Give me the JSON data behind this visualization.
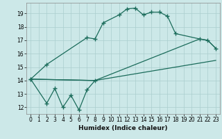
{
  "xlabel": "Humidex (Indice chaleur)",
  "bg_color": "#cce8e8",
  "grid_color": "#aacece",
  "line_color": "#1a6b5a",
  "xlim": [
    -0.5,
    23.5
  ],
  "ylim": [
    11.5,
    19.8
  ],
  "yticks": [
    12,
    13,
    14,
    15,
    16,
    17,
    18,
    19
  ],
  "xticks": [
    0,
    1,
    2,
    3,
    4,
    5,
    6,
    7,
    8,
    9,
    10,
    11,
    12,
    13,
    14,
    15,
    16,
    17,
    18,
    19,
    20,
    21,
    22,
    23
  ],
  "line1_marked": [
    [
      0,
      14.1
    ],
    [
      2,
      15.2
    ],
    [
      7,
      17.2
    ],
    [
      8,
      17.1
    ],
    [
      9,
      18.3
    ],
    [
      11,
      18.9
    ],
    [
      12,
      19.35
    ],
    [
      13,
      19.4
    ],
    [
      14,
      18.9
    ],
    [
      15,
      19.1
    ],
    [
      16,
      19.1
    ],
    [
      17,
      18.8
    ],
    [
      18,
      17.5
    ],
    [
      21,
      17.1
    ],
    [
      22,
      17.0
    ],
    [
      23,
      16.4
    ]
  ],
  "line2_plain": [
    [
      0,
      14.1
    ],
    [
      8,
      14.0
    ],
    [
      23,
      15.5
    ]
  ],
  "line3_plain": [
    [
      0,
      14.1
    ],
    [
      8,
      14.0
    ],
    [
      21,
      17.1
    ],
    [
      22,
      17.0
    ],
    [
      23,
      16.4
    ]
  ],
  "line4_zigzag": [
    [
      0,
      14.1
    ],
    [
      2,
      12.3
    ],
    [
      3,
      13.4
    ],
    [
      4,
      12.0
    ],
    [
      5,
      12.9
    ],
    [
      6,
      11.8
    ],
    [
      7,
      13.3
    ],
    [
      8,
      14.0
    ]
  ],
  "marker": "+"
}
